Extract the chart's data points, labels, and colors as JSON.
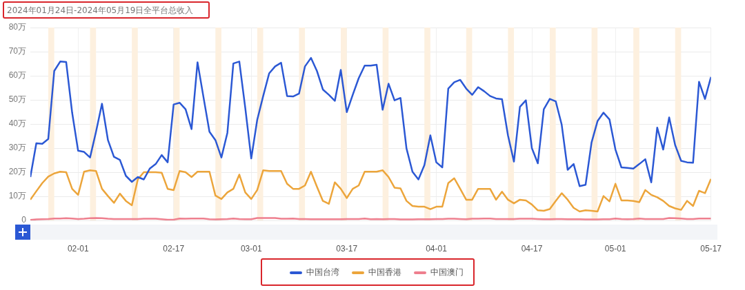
{
  "chart_data": {
    "type": "line",
    "title": "2024年01月24日-2024年05月19日全平台总收入",
    "x": [
      "2024-01-24",
      "2024-01-25",
      "2024-01-26",
      "2024-01-27",
      "2024-01-28",
      "2024-01-29",
      "2024-01-30",
      "2024-01-31",
      "2024-02-01",
      "2024-02-02",
      "2024-02-03",
      "2024-02-04",
      "2024-02-05",
      "2024-02-06",
      "2024-02-07",
      "2024-02-08",
      "2024-02-09",
      "2024-02-10",
      "2024-02-11",
      "2024-02-12",
      "2024-02-13",
      "2024-02-14",
      "2024-02-15",
      "2024-02-16",
      "2024-02-17",
      "2024-02-18",
      "2024-02-19",
      "2024-02-20",
      "2024-02-21",
      "2024-02-22",
      "2024-02-23",
      "2024-02-24",
      "2024-02-25",
      "2024-02-26",
      "2024-02-27",
      "2024-02-28",
      "2024-02-29",
      "2024-03-01",
      "2024-03-02",
      "2024-03-03",
      "2024-03-04",
      "2024-03-05",
      "2024-03-06",
      "2024-03-07",
      "2024-03-08",
      "2024-03-09",
      "2024-03-10",
      "2024-03-11",
      "2024-03-12",
      "2024-03-13",
      "2024-03-14",
      "2024-03-15",
      "2024-03-16",
      "2024-03-17",
      "2024-03-18",
      "2024-03-19",
      "2024-03-20",
      "2024-03-21",
      "2024-03-22",
      "2024-03-23",
      "2024-03-24",
      "2024-03-25",
      "2024-03-26",
      "2024-03-27",
      "2024-03-28",
      "2024-03-29",
      "2024-03-30",
      "2024-03-31",
      "2024-04-01",
      "2024-04-02",
      "2024-04-03",
      "2024-04-04",
      "2024-04-05",
      "2024-04-06",
      "2024-04-07",
      "2024-04-08",
      "2024-04-09",
      "2024-04-10",
      "2024-04-11",
      "2024-04-12",
      "2024-04-13",
      "2024-04-14",
      "2024-04-15",
      "2024-04-16",
      "2024-04-17",
      "2024-04-18",
      "2024-04-19",
      "2024-04-20",
      "2024-04-21",
      "2024-04-22",
      "2024-04-23",
      "2024-04-24",
      "2024-04-25",
      "2024-04-26",
      "2024-04-27",
      "2024-04-28",
      "2024-04-29",
      "2024-04-30",
      "2024-05-01",
      "2024-05-02",
      "2024-05-03",
      "2024-05-04",
      "2024-05-05",
      "2024-05-06",
      "2024-05-07",
      "2024-05-08",
      "2024-05-09",
      "2024-05-10",
      "2024-05-11",
      "2024-05-12",
      "2024-05-13",
      "2024-05-14",
      "2024-05-15",
      "2024-05-16",
      "2024-05-17"
    ],
    "series": [
      {
        "name": "中国台湾",
        "color": "#2b58d4",
        "values": [
          18.0,
          32.0,
          31.8,
          33.8,
          62.0,
          65.9,
          65.7,
          44.7,
          28.9,
          28.4,
          26.1,
          36.8,
          48.4,
          33.3,
          26.4,
          25.1,
          18.5,
          16.0,
          18.0,
          17.0,
          21.5,
          23.4,
          27.1,
          24.1,
          48.1,
          48.8,
          46.1,
          37.9,
          65.6,
          51.1,
          36.8,
          33.3,
          26.1,
          36.3,
          65.1,
          65.9,
          46.6,
          25.7,
          41.7,
          51.6,
          61.0,
          63.9,
          65.4,
          51.6,
          51.4,
          52.6,
          63.9,
          67.4,
          62.0,
          54.3,
          52.1,
          49.6,
          62.4,
          44.9,
          52.1,
          59.0,
          64.2,
          64.2,
          64.6,
          45.9,
          56.7,
          49.8,
          50.8,
          29.9,
          20.2,
          17.0,
          22.9,
          35.3,
          24.1,
          22.0,
          54.7,
          57.3,
          58.3,
          54.7,
          52.1,
          55.3,
          53.6,
          51.6,
          50.6,
          50.3,
          35.3,
          24.4,
          47.1,
          49.8,
          30.0,
          23.7,
          46.1,
          50.4,
          49.4,
          39.7,
          21.0,
          23.4,
          14.2,
          14.8,
          32.3,
          41.2,
          44.7,
          41.9,
          29.4,
          22.0,
          21.8,
          21.5,
          23.4,
          25.4,
          15.8,
          38.5,
          29.4,
          42.7,
          31.3,
          24.7,
          24.1,
          23.9,
          57.5,
          50.4,
          59.5
        ]
      },
      {
        "name": "中国香港",
        "color": "#eca53b",
        "values": [
          8.6,
          12.1,
          15.5,
          18.2,
          19.5,
          20.2,
          20.0,
          13.1,
          10.6,
          20.2,
          20.8,
          20.5,
          13.1,
          10.1,
          7.3,
          11.1,
          8.1,
          6.3,
          17.0,
          20.0,
          20.0,
          20.0,
          19.8,
          13.1,
          12.6,
          20.5,
          20.0,
          18.0,
          20.2,
          20.2,
          20.2,
          10.3,
          8.9,
          11.6,
          13.1,
          19.0,
          11.6,
          8.9,
          12.6,
          20.8,
          20.5,
          20.5,
          20.5,
          15.2,
          13.1,
          13.1,
          14.5,
          20.2,
          14.0,
          8.1,
          6.9,
          15.8,
          13.1,
          9.3,
          13.1,
          14.5,
          20.2,
          20.2,
          20.2,
          20.8,
          18.0,
          13.6,
          13.3,
          8.1,
          6.0,
          5.7,
          5.7,
          4.7,
          5.7,
          5.7,
          15.5,
          17.5,
          13.1,
          8.6,
          8.6,
          13.1,
          13.1,
          13.1,
          8.6,
          11.9,
          8.6,
          7.1,
          8.6,
          8.3,
          6.6,
          4.2,
          4.0,
          4.7,
          8.1,
          11.3,
          8.6,
          5.2,
          3.7,
          4.2,
          4.0,
          3.7,
          10.1,
          7.9,
          15.2,
          8.3,
          8.3,
          8.1,
          7.6,
          12.6,
          10.6,
          9.6,
          8.1,
          6.0,
          5.0,
          4.4,
          8.1,
          6.0,
          12.3,
          11.3,
          17.2
        ]
      },
      {
        "name": "中国澳门",
        "color": "#ee7f8e",
        "values": [
          0.2,
          0.4,
          0.5,
          0.6,
          0.8,
          0.8,
          0.9,
          0.8,
          0.6,
          0.7,
          0.9,
          1.0,
          0.9,
          0.7,
          0.6,
          0.6,
          0.6,
          0.6,
          0.6,
          0.7,
          0.7,
          0.7,
          0.5,
          0.3,
          0.3,
          0.8,
          0.7,
          0.8,
          0.8,
          0.8,
          0.5,
          0.4,
          0.5,
          0.6,
          0.8,
          0.6,
          0.5,
          0.5,
          1.0,
          1.0,
          1.0,
          1.0,
          0.7,
          0.7,
          0.8,
          0.6,
          0.6,
          0.5,
          0.5,
          0.5,
          0.5,
          0.5,
          0.5,
          0.6,
          0.6,
          0.6,
          0.8,
          0.5,
          0.6,
          0.5,
          0.6,
          0.6,
          0.4,
          0.4,
          0.4,
          0.5,
          0.5,
          0.5,
          0.6,
          0.6,
          0.7,
          0.7,
          0.6,
          0.5,
          0.7,
          0.7,
          0.8,
          0.8,
          0.6,
          0.6,
          0.6,
          0.6,
          0.7,
          0.7,
          0.7,
          0.6,
          0.5,
          0.5,
          0.6,
          0.6,
          0.5,
          0.5,
          0.5,
          0.4,
          0.4,
          0.4,
          0.5,
          0.5,
          0.8,
          0.6,
          0.5,
          0.6,
          0.8,
          0.6,
          0.6,
          0.6,
          0.6,
          1.0,
          0.9,
          0.8,
          0.6,
          0.6,
          0.8,
          0.8,
          0.8
        ]
      }
    ],
    "xlim": [
      "2024-01-24",
      "2024-05-17"
    ],
    "xticks": [
      {
        "value": "2024-02-01",
        "label": "02-01"
      },
      {
        "value": "2024-02-17",
        "label": "02-17"
      },
      {
        "value": "2024-03-01",
        "label": "03-01"
      },
      {
        "value": "2024-03-17",
        "label": "03-17"
      },
      {
        "value": "2024-04-01",
        "label": "04-01"
      },
      {
        "value": "2024-04-17",
        "label": "04-17"
      },
      {
        "value": "2024-05-01",
        "label": "05-01"
      },
      {
        "value": "2024-05-17",
        "label": "05-17"
      }
    ],
    "ylim": [
      0,
      80
    ],
    "yticks": [
      0,
      {
        "value": 10,
        "label": "10万"
      },
      {
        "value": 20,
        "label": "20万"
      },
      {
        "value": 30,
        "label": "30万"
      },
      {
        "value": 40,
        "label": "40万"
      },
      {
        "value": 50,
        "label": "50万"
      },
      {
        "value": 60,
        "label": "60万"
      },
      {
        "value": 70,
        "label": "70万"
      },
      {
        "value": 80,
        "label": "80万"
      }
    ],
    "bands": [
      {
        "axis": "x",
        "from": "2024-01-27",
        "to": "2024-01-28",
        "color": "#fdf0df"
      },
      {
        "axis": "x",
        "from": "2024-02-03",
        "to": "2024-02-04",
        "color": "#fdf0df"
      },
      {
        "axis": "x",
        "from": "2024-02-10",
        "to": "2024-02-11",
        "color": "#fdf0df"
      },
      {
        "axis": "x",
        "from": "2024-02-17",
        "to": "2024-02-18",
        "color": "#fdf0df"
      },
      {
        "axis": "x",
        "from": "2024-02-24",
        "to": "2024-02-25",
        "color": "#fdf0df"
      },
      {
        "axis": "x",
        "from": "2024-03-02",
        "to": "2024-03-03",
        "color": "#fdf0df"
      },
      {
        "axis": "x",
        "from": "2024-03-09",
        "to": "2024-03-10",
        "color": "#fdf0df"
      },
      {
        "axis": "x",
        "from": "2024-03-16",
        "to": "2024-03-17",
        "color": "#fdf0df"
      },
      {
        "axis": "x",
        "from": "2024-03-23",
        "to": "2024-03-24",
        "color": "#fdf0df"
      },
      {
        "axis": "x",
        "from": "2024-03-30",
        "to": "2024-03-31",
        "color": "#fdf0df"
      },
      {
        "axis": "x",
        "from": "2024-04-06",
        "to": "2024-04-07",
        "color": "#fdf0df"
      },
      {
        "axis": "x",
        "from": "2024-04-13",
        "to": "2024-04-14",
        "color": "#fdf0df"
      },
      {
        "axis": "x",
        "from": "2024-04-20",
        "to": "2024-04-21",
        "color": "#fdf0df"
      },
      {
        "axis": "x",
        "from": "2024-04-27",
        "to": "2024-04-28",
        "color": "#fdf0df"
      },
      {
        "axis": "x",
        "from": "2024-05-04",
        "to": "2024-05-05",
        "color": "#fdf0df"
      },
      {
        "axis": "x",
        "from": "2024-05-11",
        "to": "2024-05-12",
        "color": "#fdf0df"
      }
    ],
    "grid": true,
    "legend": "bottom",
    "marker": "none",
    "line_style": "solid"
  }
}
